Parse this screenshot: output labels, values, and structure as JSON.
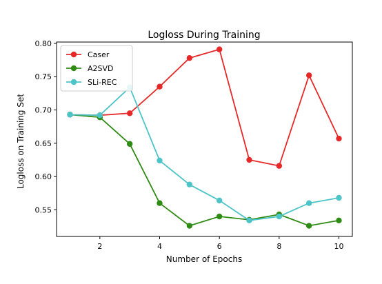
{
  "chart_data": {
    "type": "line",
    "title": "Logloss During Training",
    "xlabel": "Number of Epochs",
    "ylabel": "Logloss on Training Set",
    "xlim": [
      0.55,
      10.45
    ],
    "ylim": [
      0.51,
      0.802
    ],
    "xticks": [
      2,
      4,
      6,
      8,
      10
    ],
    "xtick_labels": [
      "2",
      "4",
      "6",
      "8",
      "10"
    ],
    "yticks": [
      0.55,
      0.6,
      0.65,
      0.7,
      0.75,
      0.8
    ],
    "ytick_labels": [
      "0.55",
      "0.60",
      "0.65",
      "0.70",
      "0.75",
      "0.80"
    ],
    "grid": false,
    "legend_position": "top-left",
    "x": [
      1,
      2,
      3,
      4,
      5,
      6,
      7,
      8,
      9,
      10
    ],
    "series": [
      {
        "name": "Caser",
        "color": "#e62828",
        "values": [
          0.693,
          0.692,
          0.695,
          0.735,
          0.778,
          0.791,
          0.625,
          0.616,
          0.752,
          0.657
        ]
      },
      {
        "name": "A2SVD",
        "color": "#2e8b14",
        "values": [
          0.693,
          0.689,
          0.649,
          0.56,
          0.526,
          0.54,
          0.535,
          0.543,
          0.526,
          0.534
        ]
      },
      {
        "name": "SLi-REC",
        "color": "#4cc4c8",
        "values": [
          0.693,
          0.692,
          0.734,
          0.624,
          0.588,
          0.564,
          0.534,
          0.54,
          0.56,
          0.568
        ]
      }
    ]
  }
}
